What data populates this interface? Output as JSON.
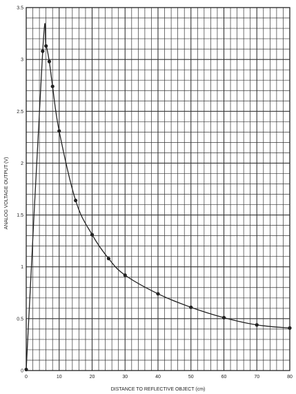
{
  "chart_data": {
    "type": "line",
    "title": "",
    "xlabel": "DISTANCE TO REFLECTIVE OBJECT (cm)",
    "ylabel": "ANALOG VOLTAGE OUTPUT (V)",
    "xlim": [
      0,
      80
    ],
    "ylim": [
      0,
      3.5
    ],
    "grid": true,
    "x_ticks": [
      "0",
      "10",
      "20",
      "30",
      "40",
      "50",
      "60",
      "70",
      "80"
    ],
    "y_ticks": [
      "0",
      "0.5",
      "1",
      "1.5",
      "2",
      "2.5",
      "3",
      "3.5"
    ],
    "series": [
      {
        "x": [
          0,
          5,
          6,
          7,
          8,
          10,
          15,
          20,
          25,
          30,
          40,
          50,
          60,
          70,
          80
        ],
        "y": [
          0.01,
          3.08,
          3.13,
          2.98,
          2.74,
          2.31,
          1.64,
          1.31,
          1.08,
          0.92,
          0.74,
          0.61,
          0.51,
          0.44,
          0.41
        ]
      }
    ],
    "colors": {
      "line": "#222222",
      "marker": "#222222",
      "grid": "#333333"
    }
  }
}
